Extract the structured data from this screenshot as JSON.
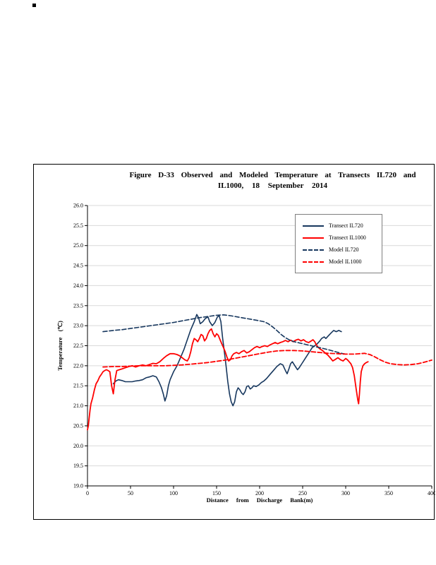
{
  "figure": {
    "title_line1": "Figure D-33 Observed and Modeled Temperature at Transects IL720 and",
    "title_line2": "IL1000, 18 September 2014"
  },
  "chart_data": {
    "type": "line",
    "title": "Figure D-33 Observed and Modeled Temperature at Transects IL720 and IL1000, 18 September 2014",
    "xlabel": "Distance from Discharge Bank(m)",
    "ylabel": "Temperature (℃)",
    "xlim": [
      0,
      400
    ],
    "ylim": [
      19.0,
      26.0
    ],
    "xticks": [
      0,
      50,
      100,
      150,
      200,
      250,
      300,
      350,
      400
    ],
    "yticks": [
      19.0,
      19.5,
      20.0,
      20.5,
      21.0,
      21.5,
      22.0,
      22.5,
      23.0,
      23.5,
      24.0,
      24.5,
      25.0,
      25.5,
      26.0
    ],
    "grid": "horizontal",
    "grid_color": "#D9D9D9",
    "axis_color": "#000000",
    "legend_position": "top-right-inside",
    "series": [
      {
        "name": "Transect IL720",
        "color": "#17375E",
        "style": "solid",
        "width": 1.6,
        "points": [
          [
            30,
            21.55
          ],
          [
            33,
            21.62
          ],
          [
            36,
            21.65
          ],
          [
            40,
            21.63
          ],
          [
            44,
            21.6
          ],
          [
            48,
            21.6
          ],
          [
            52,
            21.6
          ],
          [
            56,
            21.62
          ],
          [
            60,
            21.63
          ],
          [
            64,
            21.65
          ],
          [
            68,
            21.7
          ],
          [
            72,
            21.72
          ],
          [
            76,
            21.75
          ],
          [
            80,
            21.72
          ],
          [
            83,
            21.6
          ],
          [
            86,
            21.45
          ],
          [
            88,
            21.3
          ],
          [
            90,
            21.12
          ],
          [
            92,
            21.25
          ],
          [
            94,
            21.5
          ],
          [
            96,
            21.65
          ],
          [
            100,
            21.85
          ],
          [
            104,
            22.0
          ],
          [
            108,
            22.2
          ],
          [
            112,
            22.4
          ],
          [
            116,
            22.65
          ],
          [
            120,
            22.9
          ],
          [
            124,
            23.1
          ],
          [
            127,
            23.28
          ],
          [
            129,
            23.2
          ],
          [
            131,
            23.05
          ],
          [
            134,
            23.1
          ],
          [
            137,
            23.18
          ],
          [
            140,
            23.22
          ],
          [
            142,
            23.1
          ],
          [
            145,
            23.0
          ],
          [
            148,
            23.08
          ],
          [
            151,
            23.22
          ],
          [
            153,
            23.25
          ],
          [
            155,
            23.1
          ],
          [
            157,
            22.7
          ],
          [
            159,
            22.35
          ],
          [
            161,
            22.0
          ],
          [
            163,
            21.6
          ],
          [
            165,
            21.3
          ],
          [
            167,
            21.1
          ],
          [
            169,
            21.0
          ],
          [
            171,
            21.1
          ],
          [
            173,
            21.35
          ],
          [
            175,
            21.45
          ],
          [
            177,
            21.4
          ],
          [
            179,
            21.32
          ],
          [
            181,
            21.28
          ],
          [
            183,
            21.35
          ],
          [
            185,
            21.48
          ],
          [
            187,
            21.5
          ],
          [
            189,
            21.42
          ],
          [
            191,
            21.45
          ],
          [
            193,
            21.5
          ],
          [
            196,
            21.48
          ],
          [
            199,
            21.52
          ],
          [
            202,
            21.58
          ],
          [
            205,
            21.62
          ],
          [
            208,
            21.68
          ],
          [
            212,
            21.78
          ],
          [
            216,
            21.88
          ],
          [
            220,
            21.98
          ],
          [
            224,
            22.05
          ],
          [
            227,
            22.02
          ],
          [
            230,
            21.88
          ],
          [
            232,
            21.8
          ],
          [
            234,
            21.92
          ],
          [
            236,
            22.05
          ],
          [
            238,
            22.1
          ],
          [
            241,
            22.0
          ],
          [
            244,
            21.9
          ],
          [
            246,
            21.95
          ],
          [
            249,
            22.05
          ],
          [
            252,
            22.15
          ],
          [
            255,
            22.25
          ],
          [
            258,
            22.35
          ],
          [
            261,
            22.45
          ],
          [
            264,
            22.5
          ],
          [
            267,
            22.55
          ],
          [
            270,
            22.62
          ],
          [
            272,
            22.68
          ],
          [
            275,
            22.72
          ],
          [
            277,
            22.68
          ],
          [
            280,
            22.75
          ],
          [
            283,
            22.82
          ],
          [
            286,
            22.88
          ],
          [
            289,
            22.85
          ],
          [
            292,
            22.88
          ],
          [
            295,
            22.85
          ]
        ]
      },
      {
        "name": "Transect IL1000",
        "color": "#FF0000",
        "style": "solid",
        "width": 1.8,
        "points": [
          [
            0,
            20.4
          ],
          [
            1,
            20.5
          ],
          [
            2,
            20.7
          ],
          [
            3,
            20.9
          ],
          [
            4,
            21.05
          ],
          [
            6,
            21.2
          ],
          [
            8,
            21.4
          ],
          [
            10,
            21.55
          ],
          [
            12,
            21.62
          ],
          [
            14,
            21.72
          ],
          [
            16,
            21.78
          ],
          [
            18,
            21.85
          ],
          [
            20,
            21.88
          ],
          [
            22,
            21.9
          ],
          [
            24,
            21.88
          ],
          [
            26,
            21.85
          ],
          [
            28,
            21.5
          ],
          [
            30,
            21.3
          ],
          [
            32,
            21.65
          ],
          [
            34,
            21.88
          ],
          [
            37,
            21.9
          ],
          [
            40,
            21.92
          ],
          [
            44,
            21.95
          ],
          [
            48,
            21.98
          ],
          [
            52,
            22.0
          ],
          [
            56,
            21.97
          ],
          [
            60,
            22.0
          ],
          [
            64,
            22.02
          ],
          [
            68,
            22.0
          ],
          [
            72,
            22.03
          ],
          [
            76,
            22.06
          ],
          [
            80,
            22.05
          ],
          [
            84,
            22.1
          ],
          [
            88,
            22.18
          ],
          [
            92,
            22.25
          ],
          [
            96,
            22.3
          ],
          [
            100,
            22.3
          ],
          [
            104,
            22.28
          ],
          [
            107,
            22.25
          ],
          [
            110,
            22.2
          ],
          [
            113,
            22.15
          ],
          [
            116,
            22.12
          ],
          [
            118,
            22.2
          ],
          [
            120,
            22.35
          ],
          [
            122,
            22.55
          ],
          [
            124,
            22.68
          ],
          [
            126,
            22.65
          ],
          [
            128,
            22.6
          ],
          [
            130,
            22.68
          ],
          [
            132,
            22.78
          ],
          [
            134,
            22.75
          ],
          [
            136,
            22.62
          ],
          [
            138,
            22.68
          ],
          [
            140,
            22.8
          ],
          [
            142,
            22.88
          ],
          [
            144,
            22.92
          ],
          [
            146,
            22.8
          ],
          [
            148,
            22.72
          ],
          [
            150,
            22.8
          ],
          [
            152,
            22.76
          ],
          [
            154,
            22.65
          ],
          [
            156,
            22.55
          ],
          [
            158,
            22.45
          ],
          [
            160,
            22.35
          ],
          [
            162,
            22.22
          ],
          [
            164,
            22.12
          ],
          [
            166,
            22.15
          ],
          [
            168,
            22.25
          ],
          [
            170,
            22.3
          ],
          [
            173,
            22.33
          ],
          [
            176,
            22.3
          ],
          [
            179,
            22.35
          ],
          [
            182,
            22.38
          ],
          [
            185,
            22.32
          ],
          [
            188,
            22.35
          ],
          [
            191,
            22.4
          ],
          [
            194,
            22.45
          ],
          [
            197,
            22.48
          ],
          [
            200,
            22.45
          ],
          [
            203,
            22.48
          ],
          [
            206,
            22.5
          ],
          [
            209,
            22.48
          ],
          [
            212,
            22.52
          ],
          [
            215,
            22.55
          ],
          [
            218,
            22.58
          ],
          [
            221,
            22.55
          ],
          [
            224,
            22.58
          ],
          [
            227,
            22.6
          ],
          [
            230,
            22.63
          ],
          [
            233,
            22.6
          ],
          [
            236,
            22.64
          ],
          [
            239,
            22.6
          ],
          [
            242,
            22.64
          ],
          [
            245,
            22.66
          ],
          [
            248,
            22.62
          ],
          [
            251,
            22.65
          ],
          [
            254,
            22.6
          ],
          [
            257,
            22.58
          ],
          [
            260,
            22.62
          ],
          [
            262,
            22.65
          ],
          [
            264,
            22.6
          ],
          [
            266,
            22.52
          ],
          [
            268,
            22.46
          ],
          [
            270,
            22.42
          ],
          [
            273,
            22.38
          ],
          [
            276,
            22.32
          ],
          [
            279,
            22.27
          ],
          [
            282,
            22.2
          ],
          [
            285,
            22.12
          ],
          [
            288,
            22.16
          ],
          [
            291,
            22.2
          ],
          [
            294,
            22.15
          ],
          [
            297,
            22.12
          ],
          [
            300,
            22.18
          ],
          [
            302,
            22.15
          ],
          [
            304,
            22.1
          ],
          [
            306,
            22.05
          ],
          [
            308,
            21.95
          ],
          [
            310,
            21.75
          ],
          [
            312,
            21.45
          ],
          [
            314,
            21.15
          ],
          [
            315,
            21.05
          ],
          [
            316,
            21.3
          ],
          [
            317,
            21.6
          ],
          [
            318,
            21.85
          ],
          [
            320,
            22.0
          ],
          [
            322,
            22.05
          ],
          [
            324,
            22.08
          ],
          [
            326,
            22.1
          ]
        ]
      },
      {
        "name": "Model IL720",
        "color": "#17375E",
        "style": "dashed",
        "width": 1.6,
        "points": [
          [
            18,
            22.85
          ],
          [
            30,
            22.88
          ],
          [
            40,
            22.9
          ],
          [
            50,
            22.93
          ],
          [
            60,
            22.96
          ],
          [
            70,
            22.99
          ],
          [
            80,
            23.02
          ],
          [
            90,
            23.05
          ],
          [
            100,
            23.08
          ],
          [
            110,
            23.12
          ],
          [
            120,
            23.16
          ],
          [
            130,
            23.2
          ],
          [
            140,
            23.23
          ],
          [
            150,
            23.26
          ],
          [
            158,
            23.27
          ],
          [
            166,
            23.25
          ],
          [
            174,
            23.22
          ],
          [
            182,
            23.19
          ],
          [
            190,
            23.16
          ],
          [
            198,
            23.13
          ],
          [
            205,
            23.1
          ],
          [
            210,
            23.05
          ],
          [
            215,
            22.97
          ],
          [
            220,
            22.88
          ],
          [
            225,
            22.78
          ],
          [
            230,
            22.7
          ],
          [
            235,
            22.64
          ],
          [
            240,
            22.6
          ],
          [
            248,
            22.56
          ],
          [
            256,
            22.52
          ],
          [
            264,
            22.48
          ],
          [
            272,
            22.44
          ],
          [
            280,
            22.4
          ],
          [
            288,
            22.35
          ],
          [
            295,
            22.31
          ],
          [
            300,
            22.29
          ]
        ]
      },
      {
        "name": "Model IL1000",
        "color": "#FF0000",
        "style": "dashed",
        "width": 1.8,
        "points": [
          [
            18,
            21.97
          ],
          [
            30,
            21.98
          ],
          [
            40,
            21.98
          ],
          [
            50,
            21.99
          ],
          [
            60,
            22.0
          ],
          [
            70,
            22.0
          ],
          [
            80,
            22.0
          ],
          [
            90,
            22.0
          ],
          [
            100,
            22.01
          ],
          [
            110,
            22.02
          ],
          [
            120,
            22.04
          ],
          [
            130,
            22.06
          ],
          [
            140,
            22.08
          ],
          [
            150,
            22.11
          ],
          [
            160,
            22.14
          ],
          [
            170,
            22.18
          ],
          [
            180,
            22.22
          ],
          [
            190,
            22.26
          ],
          [
            200,
            22.3
          ],
          [
            210,
            22.34
          ],
          [
            220,
            22.37
          ],
          [
            230,
            22.38
          ],
          [
            240,
            22.38
          ],
          [
            250,
            22.37
          ],
          [
            260,
            22.35
          ],
          [
            270,
            22.33
          ],
          [
            280,
            22.31
          ],
          [
            290,
            22.3
          ],
          [
            300,
            22.29
          ],
          [
            310,
            22.29
          ],
          [
            316,
            22.3
          ],
          [
            322,
            22.31
          ],
          [
            328,
            22.28
          ],
          [
            334,
            22.22
          ],
          [
            340,
            22.15
          ],
          [
            346,
            22.09
          ],
          [
            352,
            22.05
          ],
          [
            360,
            22.03
          ],
          [
            368,
            22.02
          ],
          [
            376,
            22.03
          ],
          [
            384,
            22.05
          ],
          [
            390,
            22.08
          ],
          [
            395,
            22.11
          ],
          [
            400,
            22.14
          ]
        ]
      }
    ]
  }
}
